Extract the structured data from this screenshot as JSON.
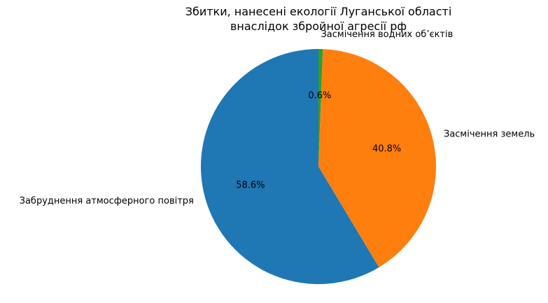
{
  "chart_data": {
    "type": "pie",
    "title_lines": [
      "Збитки, нанесені екології Луганської області",
      "внаслідок збройної агресії рф"
    ],
    "start_angle_deg": 90,
    "direction": "clockwise",
    "slices": [
      {
        "label": "Засмічення водних об’єктів",
        "value": 0.6,
        "pct_label": "0.6%",
        "color": "#2ca02c"
      },
      {
        "label": "Засмічення земель",
        "value": 40.8,
        "pct_label": "40.8%",
        "color": "#ff7f0e"
      },
      {
        "label": "Забруднення атмосферного повітря",
        "value": 58.6,
        "pct_label": "58.6%",
        "color": "#1f77b4"
      }
    ]
  }
}
